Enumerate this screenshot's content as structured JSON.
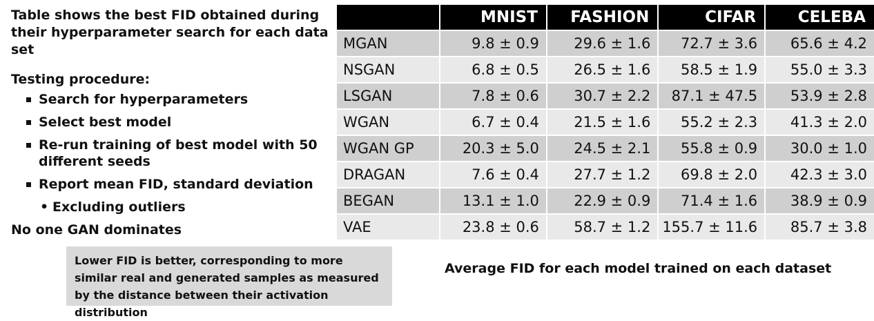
{
  "intro": "Table shows the best FID obtained during their hyperparameter search for each data set",
  "testing_heading": "Testing procedure:",
  "steps": [
    "Search for hyperparameters",
    "Select best model",
    "Re-run training of best model with 50 different seeds",
    "Report mean FID, standard deviation"
  ],
  "substep": "Excluding outliers",
  "conclusion": "No one GAN dominates",
  "note": "Lower FID is better, corresponding to more similar real and generated samples as measured by the distance between their activation distribution",
  "caption": "Average FID for each model trained on each dataset",
  "table": {
    "headers": [
      "",
      "MNIST",
      "FASHION",
      "CIFAR",
      "CELEBA"
    ],
    "rows": [
      [
        "MGAN",
        "9.8 ± 0.9",
        "29.6 ± 1.6",
        "72.7 ± 3.6",
        "65.6 ± 4.2"
      ],
      [
        "NSGAN",
        "6.8 ± 0.5",
        "26.5 ± 1.6",
        "58.5 ± 1.9",
        "55.0 ± 3.3"
      ],
      [
        "LSGAN",
        "7.8 ± 0.6",
        "30.7 ± 2.2",
        "87.1 ± 47.5",
        "53.9 ± 2.8"
      ],
      [
        "WGAN",
        "6.7 ± 0.4",
        "21.5 ± 1.6",
        "55.2 ± 2.3",
        "41.3 ± 2.0"
      ],
      [
        "WGAN GP",
        "20.3 ± 5.0",
        "24.5 ± 2.1",
        "55.8 ± 0.9",
        "30.0 ± 1.0"
      ],
      [
        "DRAGAN",
        "7.6 ± 0.4",
        "27.7 ± 1.2",
        "69.8 ± 2.0",
        "42.3 ± 3.0"
      ],
      [
        "BEGAN",
        "13.1 ± 1.0",
        "22.9 ± 0.9",
        "71.4 ± 1.6",
        "38.9 ± 0.9"
      ],
      [
        "VAE",
        "23.8 ± 0.6",
        "58.7 ± 1.2",
        "155.7 ± 11.6",
        "85.7 ± 3.8"
      ]
    ]
  }
}
